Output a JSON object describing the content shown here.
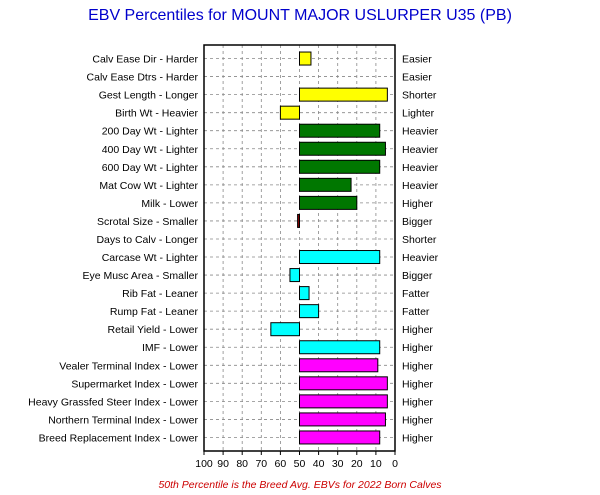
{
  "chart_data": {
    "type": "bar",
    "title": "EBV Percentiles for MOUNT MAJOR USLURPER U35 (PB)",
    "footnote": "50th Percentile is the Breed Avg. EBVs for 2022 Born Calves",
    "xlim": [
      100,
      0
    ],
    "xticks": [
      "100",
      "90",
      "80",
      "70",
      "60",
      "50",
      "40",
      "30",
      "20",
      "10",
      "0"
    ],
    "baseline": 50,
    "grid": true,
    "colors": {
      "yellow": "#ffff00",
      "green": "#007700",
      "maroon": "#880000",
      "cyan": "#00ffff",
      "magenta": "#ff00ff"
    },
    "rows": [
      {
        "left": "Calv Ease Dir - Harder",
        "right": "Easier",
        "value": 44,
        "color": "yellow"
      },
      {
        "left": "Calv Ease Dtrs - Harder",
        "right": "Easier",
        "value": null,
        "color": "yellow"
      },
      {
        "left": "Gest Length - Longer",
        "right": "Shorter",
        "value": 4,
        "color": "yellow"
      },
      {
        "left": "Birth Wt - Heavier",
        "right": "Lighter",
        "value": 60,
        "color": "yellow"
      },
      {
        "left": "200 Day Wt - Lighter",
        "right": "Heavier",
        "value": 8,
        "color": "green"
      },
      {
        "left": "400 Day Wt - Lighter",
        "right": "Heavier",
        "value": 5,
        "color": "green"
      },
      {
        "left": "600 Day Wt - Lighter",
        "right": "Heavier",
        "value": 8,
        "color": "green"
      },
      {
        "left": "Mat Cow Wt - Lighter",
        "right": "Heavier",
        "value": 23,
        "color": "green"
      },
      {
        "left": "Milk - Lower",
        "right": "Higher",
        "value": 20,
        "color": "green"
      },
      {
        "left": "Scrotal Size - Smaller",
        "right": "Bigger",
        "value": 51,
        "color": "maroon"
      },
      {
        "left": "Days to Calv - Longer",
        "right": "Shorter",
        "value": null,
        "color": "maroon"
      },
      {
        "left": "Carcase Wt - Lighter",
        "right": "Heavier",
        "value": 8,
        "color": "cyan"
      },
      {
        "left": "Eye Musc Area - Smaller",
        "right": "Bigger",
        "value": 55,
        "color": "cyan"
      },
      {
        "left": "Rib Fat - Leaner",
        "right": "Fatter",
        "value": 45,
        "color": "cyan"
      },
      {
        "left": "Rump Fat - Leaner",
        "right": "Fatter",
        "value": 40,
        "color": "cyan"
      },
      {
        "left": "Retail Yield - Lower",
        "right": "Higher",
        "value": 65,
        "color": "cyan"
      },
      {
        "left": "IMF - Lower",
        "right": "Higher",
        "value": 8,
        "color": "cyan"
      },
      {
        "left": "Vealer Terminal Index - Lower",
        "right": "Higher",
        "value": 9,
        "color": "magenta"
      },
      {
        "left": "Supermarket Index - Lower",
        "right": "Higher",
        "value": 4,
        "color": "magenta"
      },
      {
        "left": "Heavy Grassfed Steer Index - Lower",
        "right": "Higher",
        "value": 4,
        "color": "magenta"
      },
      {
        "left": "Northern Terminal Index - Lower",
        "right": "Higher",
        "value": 5,
        "color": "magenta"
      },
      {
        "left": "Breed Replacement Index - Lower",
        "right": "Higher",
        "value": 8,
        "color": "magenta"
      }
    ]
  }
}
